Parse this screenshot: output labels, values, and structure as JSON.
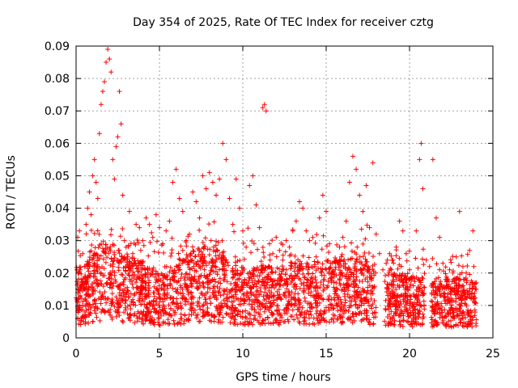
{
  "chart_data": {
    "type": "scatter",
    "title": "Day 354 of 2025, Rate Of TEC Index for receiver cztg",
    "xlabel": "GPS time / hours",
    "ylabel": "ROTI / TECUs",
    "xlim": [
      0,
      25
    ],
    "ylim": [
      0,
      0.09
    ],
    "xticks": [
      0,
      5,
      10,
      15,
      20,
      25
    ],
    "xtick_labels": [
      "0",
      "5",
      "10",
      "15",
      "20",
      "25"
    ],
    "yticks": [
      0,
      0.01,
      0.02,
      0.03,
      0.04,
      0.05,
      0.06,
      0.07,
      0.08,
      0.09
    ],
    "ytick_labels": [
      "0",
      "0.01",
      "0.02",
      "0.03",
      "0.04",
      "0.05",
      "0.06",
      "0.07",
      "0.08",
      "0.09"
    ],
    "grid": true,
    "marker": "+",
    "color": "#ff0000",
    "series": [
      {
        "name": "ROTI",
        "points": [
          [
            0.1,
            0.031
          ],
          [
            0.2,
            0.033
          ],
          [
            0.3,
            0.018
          ],
          [
            0.4,
            0.026
          ],
          [
            0.5,
            0.022
          ],
          [
            0.6,
            0.035
          ],
          [
            0.7,
            0.04
          ],
          [
            0.8,
            0.045
          ],
          [
            0.9,
            0.038
          ],
          [
            1.0,
            0.05
          ],
          [
            1.1,
            0.055
          ],
          [
            1.2,
            0.048
          ],
          [
            1.3,
            0.043
          ],
          [
            1.4,
            0.063
          ],
          [
            1.5,
            0.072
          ],
          [
            1.6,
            0.076
          ],
          [
            1.7,
            0.079
          ],
          [
            1.8,
            0.085
          ],
          [
            1.9,
            0.089
          ],
          [
            2.0,
            0.086
          ],
          [
            2.1,
            0.082
          ],
          [
            2.2,
            0.055
          ],
          [
            2.3,
            0.049
          ],
          [
            2.4,
            0.059
          ],
          [
            2.5,
            0.062
          ],
          [
            2.6,
            0.076
          ],
          [
            2.7,
            0.066
          ],
          [
            2.8,
            0.044
          ],
          [
            2.9,
            0.03
          ],
          [
            3.0,
            0.028
          ],
          [
            3.2,
            0.039
          ],
          [
            3.4,
            0.026
          ],
          [
            3.6,
            0.035
          ],
          [
            3.8,
            0.034
          ],
          [
            4.0,
            0.03
          ],
          [
            4.2,
            0.037
          ],
          [
            4.4,
            0.035
          ],
          [
            4.6,
            0.031
          ],
          [
            4.8,
            0.038
          ],
          [
            5.0,
            0.034
          ],
          [
            5.2,
            0.029
          ],
          [
            5.4,
            0.033
          ],
          [
            5.6,
            0.036
          ],
          [
            5.8,
            0.048
          ],
          [
            6.0,
            0.052
          ],
          [
            6.2,
            0.043
          ],
          [
            6.4,
            0.039
          ],
          [
            6.6,
            0.03
          ],
          [
            6.8,
            0.032
          ],
          [
            7.0,
            0.045
          ],
          [
            7.2,
            0.042
          ],
          [
            7.4,
            0.037
          ],
          [
            7.6,
            0.05
          ],
          [
            7.8,
            0.046
          ],
          [
            8.0,
            0.051
          ],
          [
            8.2,
            0.048
          ],
          [
            8.4,
            0.044
          ],
          [
            8.6,
            0.049
          ],
          [
            8.8,
            0.06
          ],
          [
            9.0,
            0.055
          ],
          [
            9.2,
            0.043
          ],
          [
            9.4,
            0.035
          ],
          [
            9.6,
            0.049
          ],
          [
            9.8,
            0.04
          ],
          [
            10.0,
            0.033
          ],
          [
            10.2,
            0.028
          ],
          [
            10.4,
            0.047
          ],
          [
            10.6,
            0.05
          ],
          [
            10.8,
            0.041
          ],
          [
            11.0,
            0.034
          ],
          [
            11.2,
            0.071
          ],
          [
            11.3,
            0.072
          ],
          [
            11.4,
            0.07
          ],
          [
            11.6,
            0.029
          ],
          [
            11.8,
            0.026
          ],
          [
            12.0,
            0.031
          ],
          [
            12.2,
            0.027
          ],
          [
            12.4,
            0.024
          ],
          [
            12.6,
            0.03
          ],
          [
            12.8,
            0.028
          ],
          [
            13.0,
            0.033
          ],
          [
            13.2,
            0.036
          ],
          [
            13.4,
            0.042
          ],
          [
            13.6,
            0.04
          ],
          [
            13.8,
            0.033
          ],
          [
            14.0,
            0.03
          ],
          [
            14.2,
            0.031
          ],
          [
            14.4,
            0.025
          ],
          [
            14.6,
            0.037
          ],
          [
            14.8,
            0.044
          ],
          [
            15.0,
            0.039
          ],
          [
            15.2,
            0.029
          ],
          [
            15.4,
            0.02
          ],
          [
            15.6,
            0.024
          ],
          [
            15.8,
            0.028
          ],
          [
            16.0,
            0.031
          ],
          [
            16.2,
            0.036
          ],
          [
            16.4,
            0.048
          ],
          [
            16.6,
            0.056
          ],
          [
            16.8,
            0.052
          ],
          [
            17.0,
            0.044
          ],
          [
            17.2,
            0.039
          ],
          [
            17.4,
            0.047
          ],
          [
            17.6,
            0.034
          ],
          [
            17.8,
            0.054
          ],
          [
            18.0,
            0.032
          ],
          [
            18.2,
            0.026
          ],
          [
            18.4,
            0.021
          ],
          [
            18.6,
            0.023
          ],
          [
            18.8,
            0.026
          ],
          [
            19.0,
            0.024
          ],
          [
            19.2,
            0.028
          ],
          [
            19.4,
            0.036
          ],
          [
            19.6,
            0.033
          ],
          [
            19.8,
            0.026
          ],
          [
            20.0,
            0.021
          ],
          [
            20.2,
            0.019
          ],
          [
            20.4,
            0.033
          ],
          [
            20.6,
            0.055
          ],
          [
            20.7,
            0.06
          ],
          [
            20.8,
            0.046
          ],
          [
            21.0,
            0.024
          ],
          [
            21.2,
            0.022
          ],
          [
            21.4,
            0.055
          ],
          [
            21.6,
            0.037
          ],
          [
            21.8,
            0.031
          ],
          [
            22.0,
            0.023
          ],
          [
            22.2,
            0.018
          ],
          [
            22.4,
            0.021
          ],
          [
            22.6,
            0.02
          ],
          [
            22.8,
            0.025
          ],
          [
            23.0,
            0.039
          ],
          [
            23.2,
            0.022
          ],
          [
            23.4,
            0.02
          ],
          [
            23.6,
            0.027
          ],
          [
            23.8,
            0.033
          ],
          [
            24.0,
            0.015
          ]
        ],
        "baseline_profile": [
          [
            0,
            0.013
          ],
          [
            1,
            0.015
          ],
          [
            2,
            0.018
          ],
          [
            3,
            0.015
          ],
          [
            4,
            0.014
          ],
          [
            5,
            0.012
          ],
          [
            6,
            0.013
          ],
          [
            7,
            0.016
          ],
          [
            8,
            0.017
          ],
          [
            9,
            0.015
          ],
          [
            10,
            0.013
          ],
          [
            11,
            0.013
          ],
          [
            12,
            0.013
          ],
          [
            13,
            0.014
          ],
          [
            14,
            0.013
          ],
          [
            15,
            0.014
          ],
          [
            16,
            0.015
          ],
          [
            17,
            0.016
          ],
          [
            18,
            0.012
          ],
          [
            19,
            0.012
          ],
          [
            20,
            0.011
          ],
          [
            21,
            0.011
          ],
          [
            22,
            0.011
          ],
          [
            23,
            0.011
          ],
          [
            24,
            0.011
          ]
        ]
      }
    ]
  }
}
